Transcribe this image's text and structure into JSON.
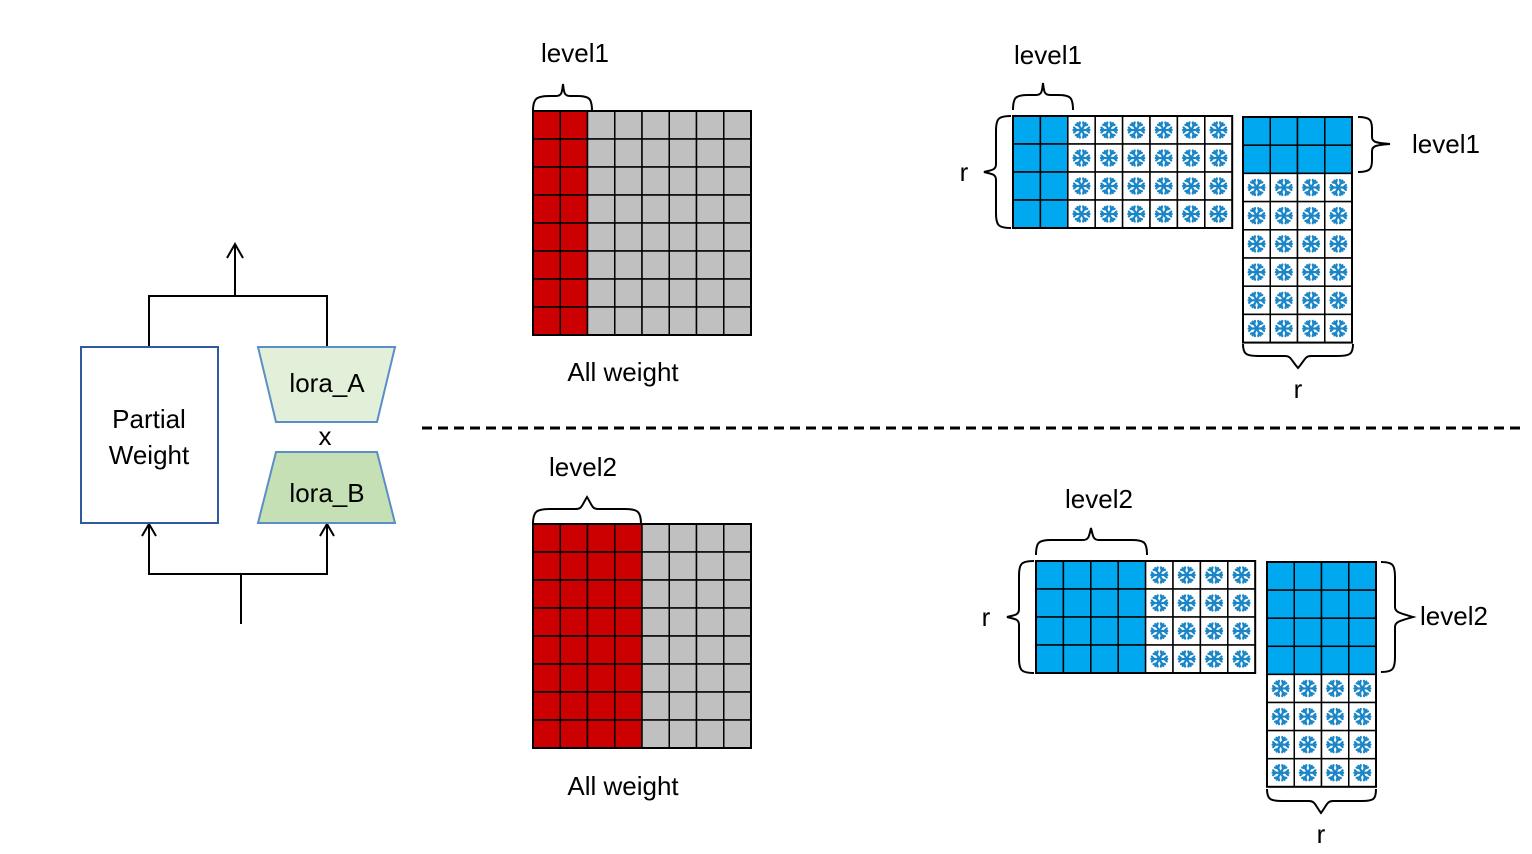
{
  "colors": {
    "active_weight": "#cc0000",
    "frozen_weight": "#c0c0c0",
    "lora_active": "#00a8ef",
    "lora_frozen_icon": "#1a86c8",
    "lora_a_fill": "#e2f0d9",
    "lora_b_fill": "#c5e0b4",
    "box_border": "#2e5a9e",
    "lora_border": "#5b8ec7"
  },
  "module": {
    "partial_weight_line1": "Partial",
    "partial_weight_line2": "Weight",
    "lora_a": "lora_A",
    "lora_b": "lora_B",
    "multiply": "x"
  },
  "panels": [
    {
      "weight_grid": {
        "rows": 8,
        "cols": 8,
        "active_cols": 2
      },
      "weight_bracket_label": "level1",
      "weight_caption": "All weight",
      "lora_a_grid": {
        "rows": 4,
        "cols": 8,
        "active_cols": 2
      },
      "lora_a_bracket_label": "level1",
      "lora_a_side_label": "r",
      "lora_b_grid": {
        "rows": 8,
        "cols": 4,
        "active_rows": 2
      },
      "lora_b_bracket_label": "level1",
      "lora_b_bottom_label": "r"
    },
    {
      "weight_grid": {
        "rows": 8,
        "cols": 8,
        "active_cols": 4
      },
      "weight_bracket_label": "level2",
      "weight_caption": "All weight",
      "lora_a_grid": {
        "rows": 4,
        "cols": 8,
        "active_cols": 4
      },
      "lora_a_bracket_label": "level2",
      "lora_a_side_label": "r",
      "lora_b_grid": {
        "rows": 8,
        "cols": 4,
        "active_rows": 4
      },
      "lora_b_bracket_label": "level2",
      "lora_b_bottom_label": "r"
    }
  ]
}
